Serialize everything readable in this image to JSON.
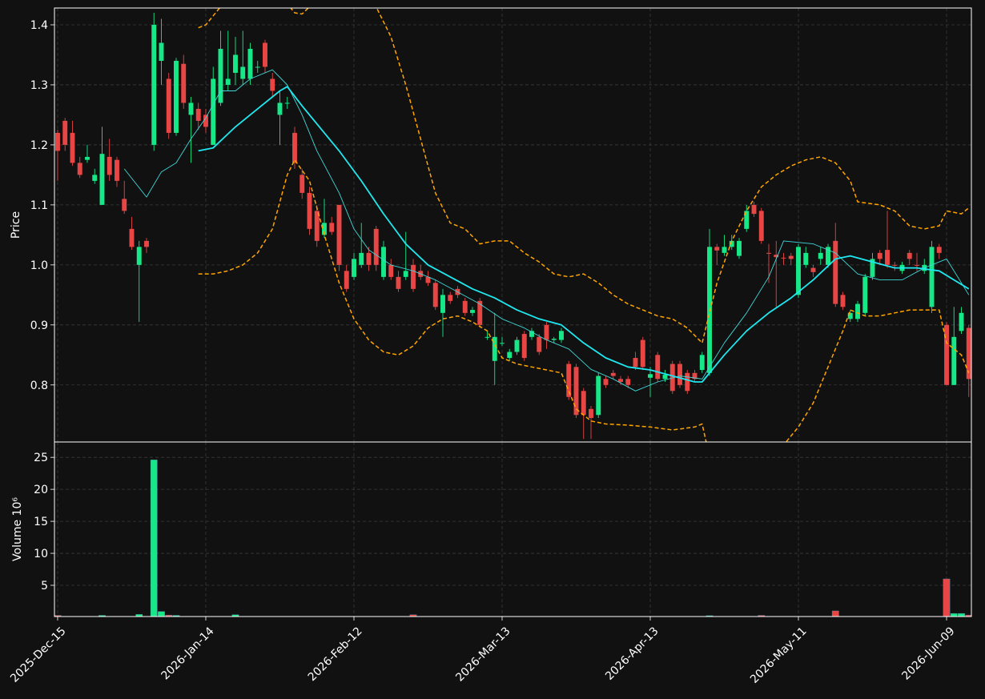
{
  "chart_data": {
    "type": "candlestick",
    "y_label": "Price",
    "volume_label": "Volume  10⁶",
    "up_color": "#16e888",
    "down_color": "#e84545",
    "grid": true,
    "xlim": [
      -0.43,
      123.35
    ],
    "xticks": [
      {
        "value": 0,
        "label": "2025-Dec-15"
      },
      {
        "value": 20,
        "label": "2026-Jan-14"
      },
      {
        "value": 40,
        "label": "2026-Feb-12"
      },
      {
        "value": 60,
        "label": "2026-Mar-13"
      },
      {
        "value": 80,
        "label": "2026-Apr-13"
      },
      {
        "value": 100,
        "label": "2026-May-11"
      },
      {
        "value": 120,
        "label": "2026-Jun-09"
      }
    ],
    "ylim": [
      0.705,
      1.428
    ],
    "yticks": [
      0.8,
      0.9,
      {
        "value": 1.0,
        "label": "1.0"
      },
      1.1,
      1.2,
      1.3,
      1.4
    ],
    "volume_ylim": [
      0.12,
      27.4
    ],
    "volume_yticks": [
      5,
      10,
      15,
      20,
      25
    ],
    "open": [
      1.22,
      1.24,
      1.22,
      1.17,
      1.175,
      1.14,
      1.1,
      1.18,
      1.175,
      1.11,
      1.06,
      1.0,
      1.04,
      1.2,
      1.34,
      1.31,
      1.22,
      1.335,
      1.25,
      1.26,
      1.25,
      1.2,
      1.27,
      1.3,
      1.32,
      1.31,
      1.31,
      1.33,
      1.37,
      1.31,
      1.25,
      1.27,
      1.22,
      1.15,
      1.12,
      1.09,
      1.05,
      1.07,
      1.1,
      0.99,
      0.98,
      1.0,
      1.02,
      1.06,
      0.98,
      1.0,
      0.98,
      0.98,
      1.0,
      0.99,
      0.98,
      0.97,
      0.92,
      0.95,
      0.96,
      0.94,
      0.92,
      0.94,
      0.88,
      0.84,
      0.87,
      0.845,
      0.855,
      0.885,
      0.88,
      0.88,
      0.9,
      0.875,
      0.875,
      0.835,
      0.83,
      0.79,
      0.76,
      0.75,
      0.81,
      0.82,
      0.81,
      0.81,
      0.845,
      0.875,
      0.812,
      0.85,
      0.81,
      0.835,
      0.835,
      0.82,
      0.82,
      0.825,
      0.82,
      1.03,
      1.02,
      1.03,
      1.015,
      1.06,
      1.1,
      1.09,
      1.02,
      1.017,
      1.012,
      1.015,
      0.95,
      1.0,
      0.995,
      1.01,
      1.0,
      1.04,
      0.95,
      0.91,
      0.91,
      0.92,
      0.98,
      1.02,
      1.025,
      1.0,
      0.99,
      1.02,
      1.0,
      0.99,
      0.93,
      1.03,
      0.9,
      0.8,
      0.89,
      0.895
    ],
    "high": [
      1.225,
      1.245,
      1.24,
      1.18,
      1.2,
      1.16,
      1.23,
      1.21,
      1.18,
      1.14,
      1.08,
      1.04,
      1.045,
      1.42,
      1.41,
      1.32,
      1.345,
      1.35,
      1.28,
      1.27,
      1.26,
      1.33,
      1.39,
      1.39,
      1.38,
      1.39,
      1.37,
      1.34,
      1.375,
      1.32,
      1.29,
      1.28,
      1.23,
      1.16,
      1.13,
      1.1,
      1.11,
      1.08,
      1.1,
      1.0,
      1.02,
      1.07,
      1.03,
      1.065,
      1.04,
      1.01,
      0.99,
      1.055,
      1.01,
      1.0,
      0.99,
      0.975,
      0.96,
      0.955,
      0.965,
      0.945,
      0.93,
      0.945,
      0.89,
      0.92,
      0.88,
      0.86,
      0.88,
      0.89,
      0.895,
      0.885,
      0.905,
      0.88,
      0.895,
      0.84,
      0.835,
      0.795,
      0.765,
      0.82,
      0.815,
      0.825,
      0.815,
      0.815,
      0.855,
      0.88,
      0.83,
      0.855,
      0.825,
      0.84,
      0.84,
      0.825,
      0.825,
      0.855,
      1.06,
      1.035,
      1.05,
      1.05,
      1.045,
      1.1,
      1.105,
      1.095,
      1.035,
      1.04,
      1.02,
      1.02,
      1.035,
      1.03,
      1.0,
      1.03,
      1.035,
      1.07,
      0.955,
      0.925,
      0.94,
      0.985,
      1.02,
      1.025,
      1.09,
      1.005,
      1.005,
      1.025,
      1.02,
      1.01,
      1.04,
      1.035,
      0.905,
      0.93,
      0.93,
      0.9
    ],
    "low": [
      1.14,
      1.19,
      1.165,
      1.145,
      1.17,
      1.135,
      1.1,
      1.14,
      1.13,
      1.085,
      1.025,
      0.905,
      1.02,
      1.19,
      1.3,
      1.21,
      1.215,
      1.26,
      1.17,
      1.225,
      1.22,
      1.2,
      1.265,
      1.29,
      1.3,
      1.3,
      1.3,
      1.32,
      1.32,
      1.28,
      1.2,
      1.26,
      1.16,
      1.11,
      1.05,
      1.03,
      1.045,
      1.05,
      0.99,
      0.955,
      0.975,
      0.995,
      0.99,
      0.99,
      0.975,
      0.975,
      0.955,
      0.975,
      0.955,
      0.975,
      0.965,
      0.925,
      0.88,
      0.935,
      0.945,
      0.915,
      0.915,
      0.895,
      0.875,
      0.8,
      0.865,
      0.84,
      0.85,
      0.84,
      0.875,
      0.85,
      0.86,
      0.87,
      0.87,
      0.775,
      0.745,
      0.71,
      0.71,
      0.745,
      0.795,
      0.81,
      0.8,
      0.795,
      0.825,
      0.825,
      0.78,
      0.805,
      0.805,
      0.785,
      0.795,
      0.785,
      0.805,
      0.82,
      0.815,
      1.0,
      1.015,
      1.025,
      1.01,
      1.055,
      1.08,
      1.035,
      0.97,
      0.93,
      1.0,
      1.0,
      0.945,
      0.995,
      0.98,
      1.0,
      0.995,
      0.93,
      0.925,
      0.905,
      0.905,
      0.915,
      0.975,
      1.0,
      0.995,
      0.99,
      0.985,
      1.0,
      0.99,
      0.985,
      0.92,
      1.01,
      0.8,
      0.8,
      0.885,
      0.78
    ],
    "close": [
      1.19,
      1.2,
      1.17,
      1.15,
      1.18,
      1.15,
      1.185,
      1.15,
      1.14,
      1.09,
      1.03,
      1.03,
      1.03,
      1.4,
      1.37,
      1.22,
      1.34,
      1.27,
      1.27,
      1.24,
      1.23,
      1.31,
      1.36,
      1.31,
      1.35,
      1.33,
      1.36,
      1.33,
      1.33,
      1.29,
      1.27,
      1.27,
      1.17,
      1.12,
      1.06,
      1.04,
      1.07,
      1.055,
      1.0,
      0.96,
      1.01,
      1.02,
      1.0,
      1.0,
      1.03,
      0.98,
      0.96,
      0.99,
      0.96,
      0.98,
      0.97,
      0.93,
      0.95,
      0.94,
      0.95,
      0.92,
      0.925,
      0.9,
      0.88,
      0.88,
      0.87,
      0.855,
      0.875,
      0.845,
      0.89,
      0.855,
      0.875,
      0.877,
      0.89,
      0.78,
      0.75,
      0.75,
      0.745,
      0.815,
      0.8,
      0.815,
      0.805,
      0.8,
      0.83,
      0.83,
      0.818,
      0.81,
      0.817,
      0.79,
      0.8,
      0.79,
      0.81,
      0.85,
      1.03,
      1.024,
      1.03,
      1.04,
      1.04,
      1.09,
      1.085,
      1.04,
      1.019,
      1.013,
      1.011,
      1.01,
      1.03,
      1.02,
      0.988,
      1.02,
      1.03,
      0.935,
      0.93,
      0.92,
      0.935,
      0.98,
      1.01,
      1.01,
      1.0,
      0.999,
      1.0,
      1.01,
      0.999,
      1.0,
      1.03,
      1.02,
      0.8,
      0.88,
      0.92,
      0.81
    ],
    "volume": [
      0.3,
      0.15,
      0.15,
      0.15,
      0.15,
      0.15,
      0.3,
      0.15,
      0.15,
      0.15,
      0.15,
      0.45,
      0.15,
      24.6,
      0.9,
      0.35,
      0.3,
      0.15,
      0.15,
      0.15,
      0.15,
      0.15,
      0.15,
      0.15,
      0.4,
      0.15,
      0.15,
      0.15,
      0.15,
      0.15,
      0.15,
      0.15,
      0.15,
      0.15,
      0.15,
      0.15,
      0.15,
      0.15,
      0.15,
      0.15,
      0.15,
      0.15,
      0.15,
      0.15,
      0.15,
      0.15,
      0.15,
      0.15,
      0.4,
      0.15,
      0.15,
      0.15,
      0.15,
      0.15,
      0.15,
      0.15,
      0.15,
      0.15,
      0.15,
      0.15,
      0.15,
      0.15,
      0.15,
      0.15,
      0.15,
      0.15,
      0.15,
      0.15,
      0.15,
      0.15,
      0.15,
      0.15,
      0.15,
      0.15,
      0.15,
      0.15,
      0.15,
      0.15,
      0.15,
      0.15,
      0.15,
      0.15,
      0.15,
      0.15,
      0.15,
      0.15,
      0.15,
      0.15,
      0.25,
      0.15,
      0.15,
      0.15,
      0.15,
      0.15,
      0.15,
      0.3,
      0.15,
      0.15,
      0.15,
      0.15,
      0.15,
      0.15,
      0.15,
      0.15,
      0.15,
      1.0,
      0.15,
      0.15,
      0.15,
      0.15,
      0.15,
      0.15,
      0.15,
      0.15,
      0.15,
      0.15,
      0.15,
      0.15,
      0.15,
      0.15,
      6.0,
      0.6,
      0.6,
      0.35
    ],
    "overlays": [
      {
        "color": "#40d8d8",
        "width": 0.9,
        "dash": false,
        "x": [
          9,
          12,
          14,
          16,
          18,
          20,
          22,
          24,
          26,
          29,
          31,
          33,
          35,
          38,
          40,
          42,
          45,
          48,
          51,
          54,
          57,
          60,
          63,
          66,
          69,
          72,
          75,
          78,
          81,
          84,
          87,
          90,
          93,
          96,
          98,
          102,
          105,
          108,
          111,
          114,
          117,
          120,
          123
        ],
        "values": [
          1.16,
          1.113,
          1.155,
          1.17,
          1.21,
          1.245,
          1.29,
          1.29,
          1.31,
          1.325,
          1.3,
          1.25,
          1.19,
          1.12,
          1.06,
          1.025,
          1.0,
          0.99,
          0.975,
          0.955,
          0.935,
          0.91,
          0.895,
          0.875,
          0.86,
          0.826,
          0.81,
          0.79,
          0.805,
          0.815,
          0.81,
          0.87,
          0.92,
          0.98,
          1.04,
          1.035,
          1.02,
          0.985,
          0.975,
          0.975,
          0.995,
          1.01,
          0.95
        ]
      },
      {
        "color": "#1ee8f0",
        "width": 1.8,
        "dash": false,
        "x": [
          19,
          21,
          24,
          27,
          30,
          31,
          33,
          35,
          38,
          41,
          44,
          47,
          50,
          53,
          56,
          59,
          62,
          65,
          68,
          71,
          74,
          77,
          80,
          83,
          86,
          87,
          90,
          93,
          96,
          99,
          102,
          105,
          107,
          110,
          113,
          116,
          119,
          121,
          123
        ],
        "values": [
          1.19,
          1.195,
          1.23,
          1.26,
          1.29,
          1.297,
          1.265,
          1.235,
          1.19,
          1.14,
          1.085,
          1.035,
          1.0,
          0.98,
          0.96,
          0.945,
          0.925,
          0.91,
          0.9,
          0.87,
          0.845,
          0.83,
          0.825,
          0.815,
          0.805,
          0.805,
          0.85,
          0.89,
          0.92,
          0.945,
          0.975,
          1.01,
          1.015,
          1.005,
          0.995,
          0.995,
          0.99,
          0.975,
          0.96
        ]
      },
      {
        "color": "#ffa500",
        "width": 1.5,
        "dash": true,
        "x": [
          19,
          20,
          21,
          22,
          26,
          30,
          32,
          33,
          34,
          40,
          43,
          45,
          47,
          49,
          51,
          53,
          55,
          57,
          59,
          61,
          63,
          65,
          67,
          69,
          71,
          73,
          75,
          77,
          79,
          81,
          83,
          85,
          87,
          88,
          89,
          91,
          93,
          95,
          97,
          99,
          101,
          103,
          105,
          107,
          108,
          111,
          113,
          115,
          117,
          119,
          120,
          122,
          123
        ],
        "values": [
          1.395,
          1.4,
          1.415,
          1.43,
          1.55,
          1.45,
          1.42,
          1.418,
          1.43,
          1.53,
          1.43,
          1.38,
          1.3,
          1.21,
          1.12,
          1.07,
          1.06,
          1.035,
          1.04,
          1.04,
          1.02,
          1.005,
          0.985,
          0.98,
          0.985,
          0.97,
          0.95,
          0.935,
          0.925,
          0.915,
          0.91,
          0.895,
          0.87,
          0.92,
          0.97,
          1.04,
          1.09,
          1.13,
          1.15,
          1.165,
          1.175,
          1.18,
          1.17,
          1.14,
          1.105,
          1.1,
          1.09,
          1.065,
          1.06,
          1.065,
          1.09,
          1.085,
          1.095
        ]
      },
      {
        "color": "#ffa500",
        "width": 1.5,
        "dash": true,
        "x": [
          19,
          21,
          23,
          25,
          27,
          29,
          31,
          32,
          34,
          36,
          38,
          40,
          42,
          44,
          46,
          48,
          50,
          52,
          54,
          56,
          58,
          60,
          62,
          64,
          66,
          68,
          70,
          72,
          74,
          77,
          80,
          83,
          86,
          87,
          88,
          92,
          98,
          100,
          102,
          104,
          106,
          107,
          109,
          111,
          113,
          115,
          117,
          119,
          120,
          122,
          123
        ],
        "values": [
          0.985,
          0.985,
          0.99,
          1.0,
          1.02,
          1.06,
          1.15,
          1.175,
          1.14,
          1.05,
          0.97,
          0.91,
          0.875,
          0.855,
          0.85,
          0.865,
          0.895,
          0.91,
          0.915,
          0.905,
          0.89,
          0.845,
          0.835,
          0.83,
          0.825,
          0.82,
          0.76,
          0.74,
          0.735,
          0.733,
          0.73,
          0.725,
          0.73,
          0.735,
          0.68,
          0.6,
          0.7,
          0.73,
          0.77,
          0.83,
          0.89,
          0.925,
          0.915,
          0.915,
          0.92,
          0.925,
          0.925,
          0.925,
          0.87,
          0.85,
          0.82
        ]
      }
    ]
  }
}
